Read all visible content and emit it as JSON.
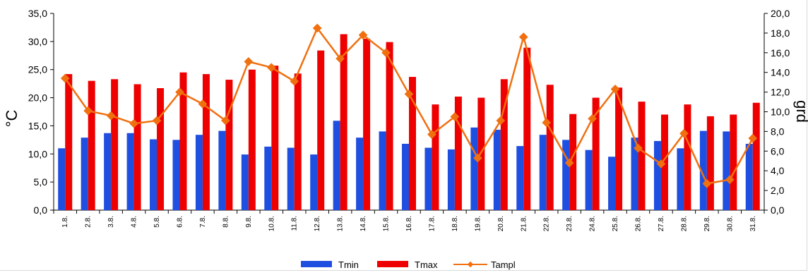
{
  "chart_data": {
    "type": "bar",
    "categories": [
      "1.8.",
      "2.8.",
      "3.8.",
      "4.8.",
      "5.8.",
      "6.8.",
      "7.8.",
      "8.8.",
      "9.8.",
      "10.8.",
      "11.8.",
      "12.8.",
      "13.8.",
      "14.8.",
      "15.8.",
      "16.8.",
      "17.8.",
      "18.8.",
      "19.8.",
      "20.8.",
      "21.8.",
      "22.8.",
      "23.8.",
      "24.8.",
      "25.8.",
      "26.8.",
      "27.8.",
      "28.8.",
      "29.8.",
      "30.8.",
      "31.8."
    ],
    "series": [
      {
        "name": "Tmin",
        "kind": "bar",
        "axis": "left",
        "color": "#1f4fe0",
        "values": [
          11.0,
          12.9,
          13.7,
          13.7,
          12.6,
          12.5,
          13.4,
          14.1,
          9.9,
          11.3,
          11.1,
          9.9,
          15.9,
          12.9,
          14.0,
          11.8,
          11.1,
          10.8,
          14.7,
          14.3,
          11.4,
          13.4,
          12.5,
          10.7,
          9.5,
          12.9,
          12.3,
          11.0,
          14.1,
          14.0,
          11.8
        ]
      },
      {
        "name": "Tmax",
        "kind": "bar",
        "axis": "left",
        "color": "#ee0000",
        "values": [
          24.2,
          23.0,
          23.3,
          22.4,
          21.7,
          24.5,
          24.2,
          23.2,
          25.0,
          25.7,
          24.3,
          28.4,
          31.3,
          30.5,
          29.9,
          23.7,
          18.8,
          20.2,
          20.0,
          23.3,
          28.9,
          22.3,
          17.1,
          20.0,
          21.8,
          19.3,
          17.0,
          18.8,
          16.7,
          17.0,
          19.1
        ]
      },
      {
        "name": "Tampl",
        "kind": "line",
        "axis": "right",
        "color": "#f07010",
        "values": [
          13.4,
          10.1,
          9.6,
          8.8,
          9.1,
          12.0,
          10.8,
          9.1,
          15.1,
          14.5,
          13.1,
          18.5,
          15.4,
          17.8,
          16.0,
          11.8,
          7.7,
          9.5,
          5.3,
          9.1,
          17.6,
          8.9,
          4.8,
          9.3,
          12.3,
          6.3,
          4.7,
          7.8,
          2.7,
          3.1,
          7.3
        ]
      }
    ],
    "ylabel": "°C",
    "ylim": [
      0,
      35
    ],
    "yticks": [
      "0,0",
      "5,0",
      "10,0",
      "15,0",
      "20,0",
      "25,0",
      "30,0",
      "35,0"
    ],
    "y2label": "grd",
    "y2lim": [
      0,
      20
    ],
    "y2ticks": [
      "0,0",
      "2,0",
      "4,0",
      "6,0",
      "8,0",
      "10,0",
      "12,0",
      "14,0",
      "16,0",
      "18,0",
      "20,0"
    ],
    "grid": false,
    "legend_position": "bottom"
  }
}
